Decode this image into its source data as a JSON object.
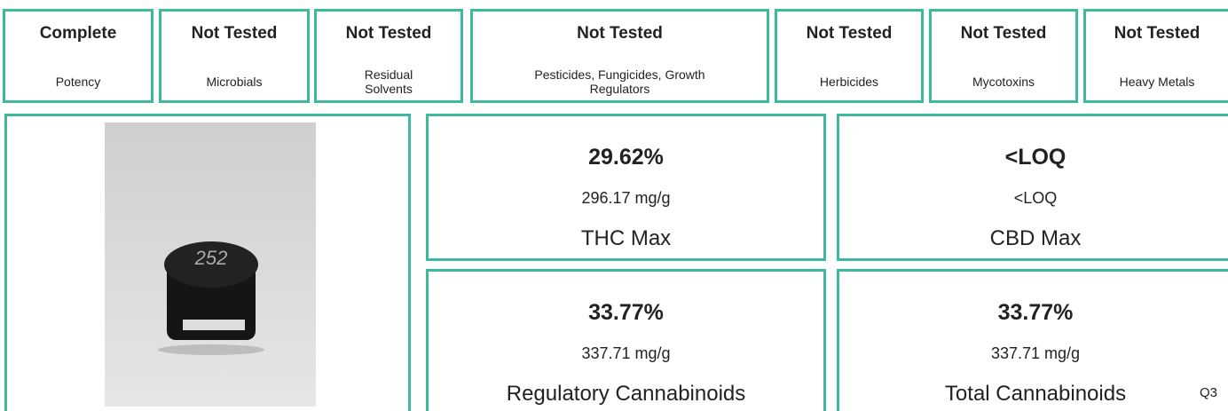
{
  "tests": [
    {
      "status": "Complete",
      "name": "Potency"
    },
    {
      "status": "Not Tested",
      "name": "Microbials"
    },
    {
      "status": "Not Tested",
      "name": "Residual Solvents"
    },
    {
      "status": "Not Tested",
      "name": "Pesticides, Fungicides, Growth Regulators"
    },
    {
      "status": "Not Tested",
      "name": "Herbicides"
    },
    {
      "status": "Not Tested",
      "name": "Mycotoxins"
    },
    {
      "status": "Not Tested",
      "name": "Heavy Metals"
    }
  ],
  "photo": {
    "label": "252"
  },
  "results": [
    {
      "percent": "29.62%",
      "amount": "296.17 mg/g",
      "label": "THC Max"
    },
    {
      "percent": "<LOQ",
      "amount": "<LOQ",
      "label": "CBD Max"
    },
    {
      "percent": "33.77%",
      "amount": "337.71 mg/g",
      "label": "Regulatory Cannabinoids"
    },
    {
      "percent": "33.77%",
      "amount": "337.71 mg/g",
      "label": "Total Cannabinoids"
    }
  ],
  "footer": "Q3"
}
